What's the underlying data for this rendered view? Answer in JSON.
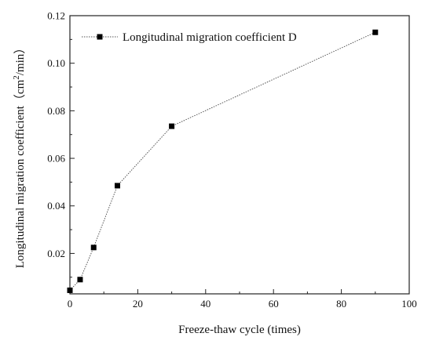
{
  "chart_data": {
    "type": "line",
    "xlabel": "Freeze-thaw cycle (times)",
    "ylabel": "Longitudinal migration coefficient（cm",
    "ylabel_sup": "2",
    "ylabel_tail": "/min）",
    "xlim": [
      0,
      100
    ],
    "ylim": [
      0.003,
      0.12
    ],
    "xticks": [
      0,
      20,
      40,
      60,
      80,
      100
    ],
    "yticks": [
      0.02,
      0.04,
      0.06,
      0.08,
      0.1,
      0.12
    ],
    "ytick_labels": [
      "0.02",
      "0.04",
      "0.06",
      "0.08",
      "0.10",
      "0.12"
    ],
    "grid": false,
    "legend_position": "top-left",
    "series": [
      {
        "name": "Longitudinal migration coefficient D",
        "marker": "square",
        "color": "#000000",
        "x": [
          0,
          3,
          7,
          14,
          30,
          90
        ],
        "y": [
          0.0045,
          0.009,
          0.0225,
          0.0485,
          0.0735,
          0.113
        ]
      }
    ]
  }
}
